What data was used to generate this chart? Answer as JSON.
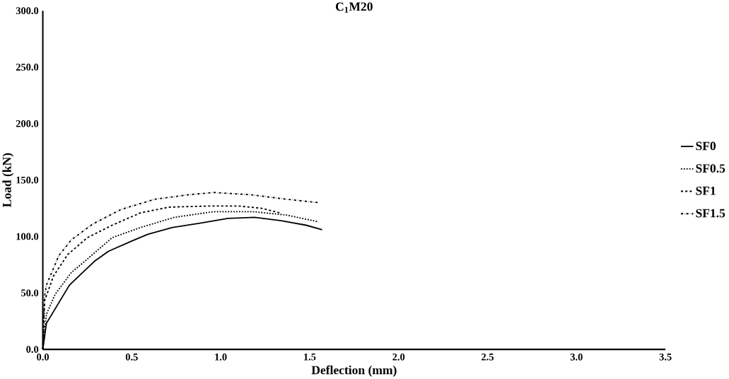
{
  "chart_data": {
    "type": "line",
    "title": "C$_{1}$M20",
    "xlabel": "Deflection (mm)",
    "ylabel": "Load (kN)",
    "xlim": [
      0,
      3.5
    ],
    "ylim": [
      0,
      300
    ],
    "xticks": [
      {
        "value": 0,
        "label": "0.0"
      },
      {
        "value": 0.5,
        "label": "0.5"
      },
      {
        "value": 1,
        "label": "1.0"
      },
      {
        "value": 1.5,
        "label": "1.5"
      },
      {
        "value": 2,
        "label": "2.0"
      },
      {
        "value": 2.5,
        "label": "2.5"
      },
      {
        "value": 3,
        "label": "3.0"
      },
      {
        "value": 3.5,
        "label": "3.5"
      }
    ],
    "yticks": [
      {
        "value": 0,
        "label": "0.0"
      },
      {
        "value": 50,
        "label": "50.0"
      },
      {
        "value": 100,
        "label": "100.0"
      },
      {
        "value": 150,
        "label": "150.0"
      },
      {
        "value": 200,
        "label": "200.0"
      },
      {
        "value": 250,
        "label": "250.0"
      },
      {
        "value": 300,
        "label": "300.0"
      }
    ],
    "grid": false,
    "legend": "right",
    "marker": "none",
    "series": [
      {
        "name": "SF0",
        "color": "#000000",
        "line_style": "solid",
        "x": [
          0,
          0.02,
          0.15,
          0.29,
          0.37,
          0.5,
          0.59,
          0.73,
          0.89,
          1.04,
          1.19,
          1.34,
          1.48,
          1.57
        ],
        "values": [
          0,
          23,
          57,
          78,
          87,
          96,
          102,
          108,
          112,
          116,
          117,
          114,
          110,
          106
        ]
      },
      {
        "name": "SF0.5",
        "color": "#000000",
        "line_style": "dotted",
        "x": [
          0,
          0.02,
          0.07,
          0.16,
          0.25,
          0.39,
          0.55,
          0.74,
          0.96,
          1.18,
          1.37,
          1.55
        ],
        "values": [
          0,
          31,
          49,
          68,
          80,
          99,
          108,
          117,
          122,
          122,
          119,
          113
        ]
      },
      {
        "name": "SF1",
        "color": "#000000",
        "line_style": "dashed",
        "x": [
          0,
          0.01,
          0.06,
          0.14,
          0.25,
          0.39,
          0.55,
          0.71,
          0.93,
          1.1,
          1.23,
          1.33
        ],
        "values": [
          0,
          43,
          65,
          84,
          99,
          110,
          121,
          126,
          127,
          127,
          125,
          121
        ]
      },
      {
        "name": "SF1.5",
        "color": "#000000",
        "line_style": "dashdot",
        "x": [
          0,
          0.01,
          0.02,
          0.09,
          0.16,
          0.28,
          0.44,
          0.63,
          0.82,
          0.96,
          1.17,
          1.37,
          1.55
        ],
        "values": [
          0,
          47,
          57,
          83,
          97,
          111,
          124,
          133,
          137,
          139,
          137,
          133,
          130
        ]
      }
    ]
  }
}
